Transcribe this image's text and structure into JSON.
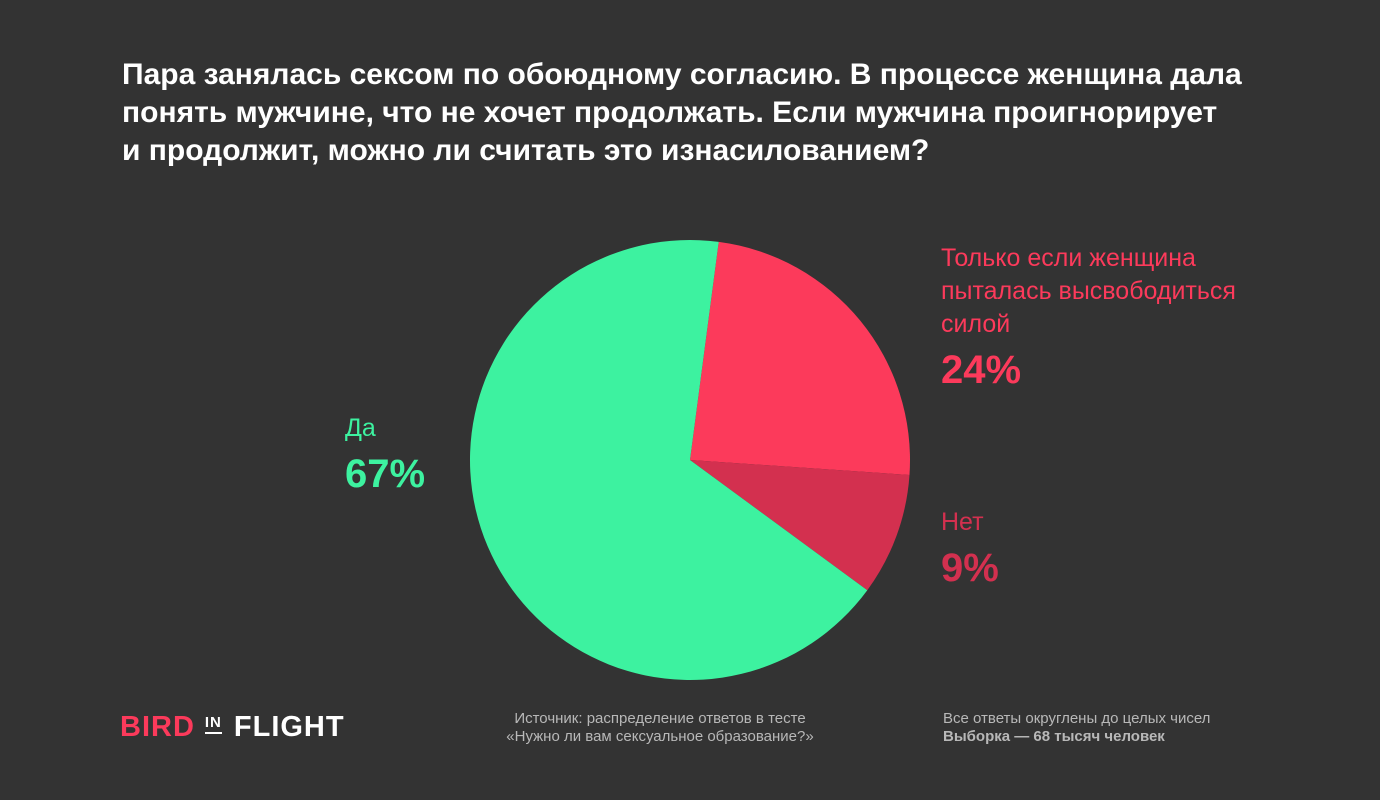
{
  "title": "Пара занялась сексом по обоюдному согласию. В процессе женщина дала понять мужчине, что не хочет продолжать. Если мужчина проигнорирует и продолжит, можно ли считать это изнасилованием?",
  "colors": {
    "background": "#333333",
    "yes": "#3df2a0",
    "only_if": "#fc3a5b",
    "no": "#d3304f",
    "footer_text": "#b8b8b8"
  },
  "chart_data": {
    "type": "pie",
    "title": "Пара занялась сексом по обоюдному согласию. В процессе женщина дала понять мужчине, что не хочет продолжать. Если мужчина проигнорирует и продолжит, можно ли считать это изнасилованием?",
    "slices": [
      {
        "label": "Только если женщина пыталась высвободиться силой",
        "value": 24,
        "display": "24%",
        "color": "#fc3a5b"
      },
      {
        "label": "Нет",
        "value": 9,
        "display": "9%",
        "color": "#d3304f"
      },
      {
        "label": "Да",
        "value": 67,
        "display": "67%",
        "color": "#3df2a0"
      }
    ],
    "start_angle_deg": 7.5,
    "direction": "clockwise"
  },
  "labels": {
    "yes": {
      "name": "Да",
      "pct": "67%"
    },
    "only_if": {
      "name": "Только если женщина пыталась высвободиться силой",
      "pct": "24%"
    },
    "no": {
      "name": "Нет",
      "pct": "9%"
    }
  },
  "footer": {
    "logo_bird": "BIRD",
    "logo_in": "IN",
    "logo_flight": "FLIGHT",
    "source_line1": "Источник: распределение ответов в тесте",
    "source_line2": "«Нужно ли вам сексуальное образование?»",
    "note_line1": "Все ответы округлены до целых чисел",
    "note_line2": "Выборка — 68 тысяч человек"
  }
}
